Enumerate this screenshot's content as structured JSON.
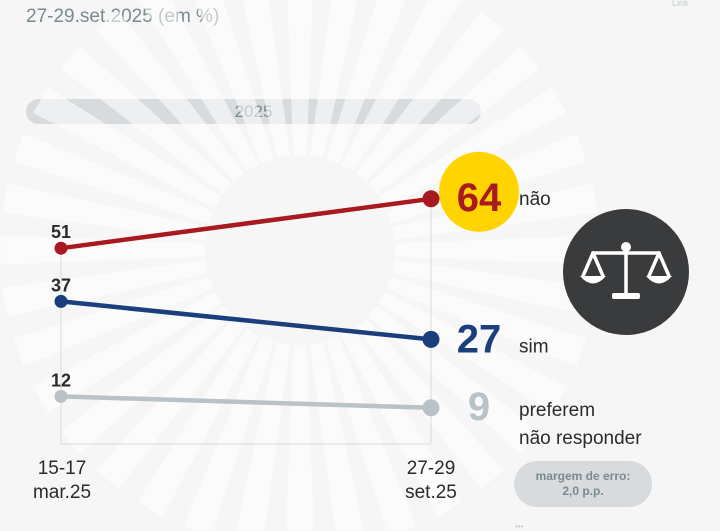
{
  "subtitle": "27-29.set.2025 (em %)",
  "year_label": "2025",
  "margin": {
    "line1": "margem de erro:",
    "line2": "2,0 p.p."
  },
  "corner_mark": "Link",
  "foot_mark": "•••",
  "icon": "scales-of-justice-icon",
  "colors": {
    "nao": "#a81a1f",
    "sim": "#1a3f7c",
    "preferem": "#b8c2c7",
    "highlight": "#ffd400",
    "axis": "#d7dbdd",
    "text": "#2b2b2b",
    "muted": "#7a8a90"
  },
  "chart_data": {
    "type": "line",
    "title": "",
    "subtitle": "27-29.set.2025 (em %)",
    "categories": [
      [
        "15-17",
        "mar.25"
      ],
      [
        "27-29",
        "set.25"
      ]
    ],
    "ylim": [
      0,
      100
    ],
    "series": [
      {
        "key": "nao",
        "name": "não",
        "values": [
          51,
          64
        ],
        "label_lines": [
          "não"
        ]
      },
      {
        "key": "sim",
        "name": "sim",
        "values": [
          37,
          27
        ],
        "label_lines": [
          "sim"
        ]
      },
      {
        "key": "preferem",
        "name": "preferem não responder",
        "values": [
          12,
          9
        ],
        "label_lines": [
          "preferem",
          "não responder"
        ]
      }
    ]
  }
}
